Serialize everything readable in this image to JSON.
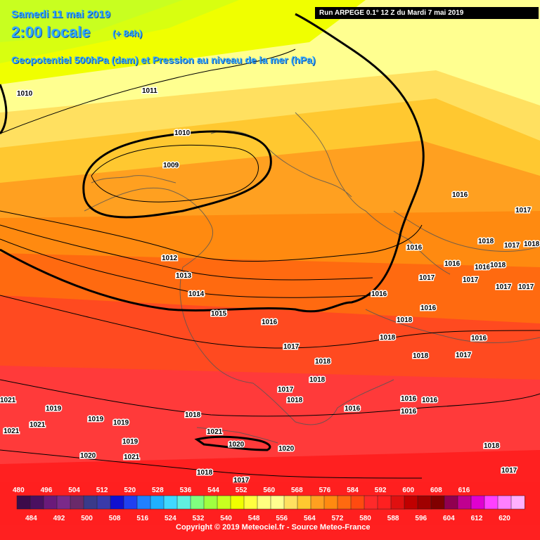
{
  "header": {
    "date": "Samedi 11 mai 2019",
    "local_time": "2:00 locale",
    "lead": "(+ 84h)",
    "subtitle": "Geopotentiel 500hPa (dam) et Pression au niveau de la mer (hPa)",
    "run": "Run ARPEGE 0.1° 12 Z du Mardi 7 mai 2019"
  },
  "isobar_labels": [
    {
      "text": "1010"
    },
    {
      "text": "1011"
    },
    {
      "text": "1010"
    },
    {
      "text": "1009"
    },
    {
      "text": "1012"
    },
    {
      "text": "1013"
    },
    {
      "text": "1014"
    },
    {
      "text": "1015"
    },
    {
      "text": "1016"
    },
    {
      "text": "1017"
    },
    {
      "text": "1018"
    },
    {
      "text": "1018"
    },
    {
      "text": "1017"
    },
    {
      "text": "1018"
    },
    {
      "text": "1016"
    },
    {
      "text": "1016"
    },
    {
      "text": "1016"
    },
    {
      "text": "1016"
    },
    {
      "text": "1016"
    },
    {
      "text": "1017"
    },
    {
      "text": "1018"
    },
    {
      "text": "1018"
    },
    {
      "text": "1016"
    },
    {
      "text": "1017"
    },
    {
      "text": "1016"
    },
    {
      "text": "1016"
    },
    {
      "text": "1017"
    },
    {
      "text": "1018"
    },
    {
      "text": "1017"
    },
    {
      "text": "1017"
    },
    {
      "text": "1016"
    },
    {
      "text": "1016"
    },
    {
      "text": "1018"
    },
    {
      "text": "1018"
    },
    {
      "text": "1017"
    },
    {
      "text": "1021"
    },
    {
      "text": "1019"
    },
    {
      "text": "1021"
    },
    {
      "text": "1019"
    },
    {
      "text": "1019"
    },
    {
      "text": "1021"
    },
    {
      "text": "1019"
    },
    {
      "text": "1020"
    },
    {
      "text": "1021"
    },
    {
      "text": "1021"
    },
    {
      "text": "1020"
    },
    {
      "text": "1020"
    },
    {
      "text": "1018"
    },
    {
      "text": "1017"
    },
    {
      "text": "1018"
    },
    {
      "text": "1017"
    },
    {
      "text": "1018"
    },
    {
      "text": "1016"
    },
    {
      "text": "1017"
    },
    {
      "text": "1018"
    }
  ],
  "legend": {
    "top_labels": [
      "480",
      "496",
      "504",
      "512",
      "520",
      "528",
      "536",
      "544",
      "552",
      "560",
      "568",
      "576",
      "584",
      "592",
      "600",
      "608",
      "616"
    ],
    "bottom_labels": [
      "484",
      "492",
      "500",
      "508",
      "516",
      "524",
      "532",
      "540",
      "548",
      "556",
      "564",
      "572",
      "580",
      "588",
      "596",
      "604",
      "612",
      "620"
    ],
    "colors": [
      "#3c0b4a",
      "#4a1060",
      "#6a1a7a",
      "#7a2a8a",
      "#6a2a6a",
      "#3a3a8a",
      "#3a3aaa",
      "#1010d0",
      "#2040f0",
      "#2080ff",
      "#20b0ff",
      "#40d8ff",
      "#60f0e0",
      "#80ff80",
      "#a0ff40",
      "#c8ff20",
      "#f0ff00",
      "#ffff40",
      "#ffff80",
      "#ffff90",
      "#ffe060",
      "#ffc830",
      "#ffa020",
      "#ff8a10",
      "#ff6a10",
      "#ff4a10",
      "#ff2a2a",
      "#ff2020",
      "#e01010",
      "#c00000",
      "#a00000",
      "#800000",
      "#900050",
      "#c00090",
      "#e000d0",
      "#ff40ff",
      "#ff80ff",
      "#ffb0ff"
    ]
  },
  "copyright": "Copyright © 2019 Meteociel.fr - Source Meteo-France"
}
